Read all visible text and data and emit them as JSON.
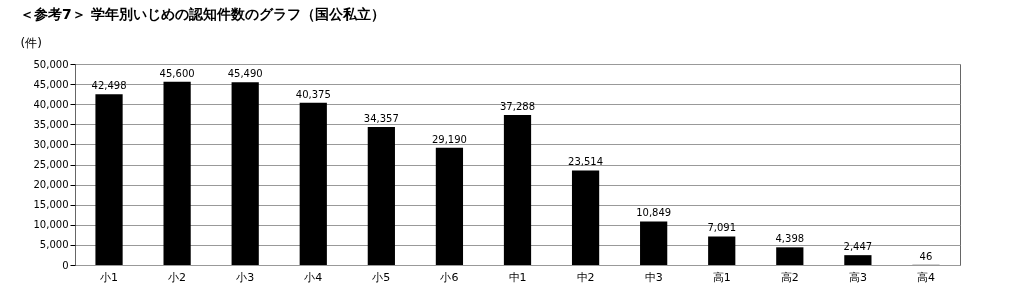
{
  "chart_data": {
    "type": "bar",
    "title": "＜参考7＞ 学年別いじめの認知件数のグラフ（国公私立）",
    "ylabel": "(件)",
    "categories": [
      "小1",
      "小2",
      "小3",
      "小4",
      "小5",
      "小6",
      "中1",
      "中2",
      "中3",
      "高1",
      "高2",
      "高3",
      "高4"
    ],
    "values": [
      42498,
      45600,
      45490,
      40375,
      34357,
      29190,
      37288,
      23514,
      10849,
      7091,
      4398,
      2447,
      46
    ],
    "value_labels": [
      "42,498",
      "45,600",
      "45,490",
      "40,375",
      "34,357",
      "29,190",
      "37,288",
      "23,514",
      "10,849",
      "7,091",
      "4,398",
      "2,447",
      "46"
    ],
    "color": "#000000",
    "ylim": [
      0,
      50000
    ],
    "yticks": [
      0,
      {
        "value": 5000,
        "label": "5,000"
      },
      {
        "value": 10000,
        "label": "10,000"
      },
      {
        "value": 15000,
        "label": "15,000"
      },
      {
        "value": 20000,
        "label": "20,000"
      },
      {
        "value": 25000,
        "label": "25,000"
      },
      {
        "value": 30000,
        "label": "30,000"
      },
      {
        "value": 35000,
        "label": "35,000"
      },
      {
        "value": 40000,
        "label": "40,000"
      },
      {
        "value": 45000,
        "label": "45,000"
      },
      {
        "value": 50000,
        "label": "50,000"
      }
    ],
    "grid": "y"
  }
}
